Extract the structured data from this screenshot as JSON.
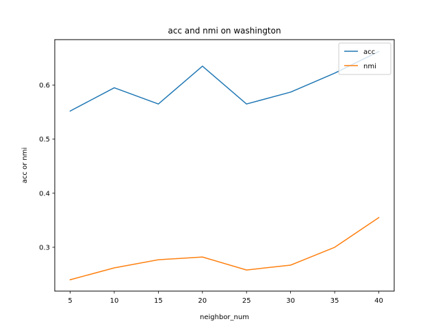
{
  "chart_data": {
    "type": "line",
    "title": "acc and nmi on washington",
    "xlabel": "neighbor_num",
    "ylabel": "acc or nmi",
    "x": [
      5,
      10,
      15,
      20,
      25,
      30,
      35,
      40
    ],
    "xticks": [
      5,
      10,
      15,
      20,
      25,
      30,
      35,
      40
    ],
    "yticks": [
      0.3,
      0.4,
      0.5,
      0.6
    ],
    "ytick_labels": [
      "0.3",
      "0.4",
      "0.5",
      "0.6"
    ],
    "xlim": [
      3.25,
      41.75
    ],
    "ylim": [
      0.219,
      0.684
    ],
    "grid": false,
    "legend_position": "top-right",
    "series": [
      {
        "name": "acc",
        "color": "#1f77b4",
        "values": [
          0.552,
          0.595,
          0.565,
          0.635,
          0.565,
          0.587,
          0.622,
          0.662
        ]
      },
      {
        "name": "nmi",
        "color": "#ff7f0e",
        "values": [
          0.24,
          0.262,
          0.277,
          0.282,
          0.258,
          0.267,
          0.3,
          0.355
        ]
      }
    ]
  }
}
